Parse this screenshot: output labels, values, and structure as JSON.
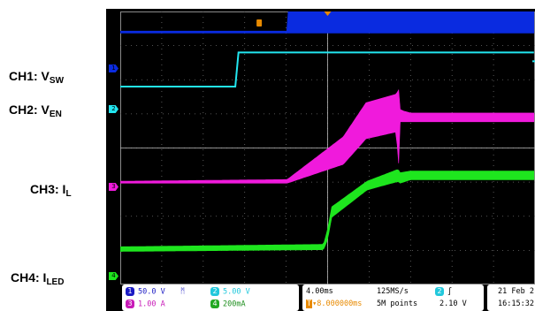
{
  "channels": [
    {
      "id": "1",
      "label_main": "CH1: V",
      "label_sub": "SW",
      "color": "#1b1bc4",
      "trace_color": "#0a2be0",
      "scale": "50.0 V"
    },
    {
      "id": "2",
      "label_main": "CH2: V",
      "label_sub": "EN",
      "color": "#22c8dc",
      "trace_color": "#22e6f0",
      "scale": "5.00 V"
    },
    {
      "id": "3",
      "label_main": "CH3: I",
      "label_sub": "L",
      "color": "#e81bd0",
      "trace_color": "#f01adc",
      "scale": "1.00 A"
    },
    {
      "id": "4",
      "label_main": "CH4: I",
      "label_sub": "LED",
      "color": "#22bf22",
      "trace_color": "#1ee61e",
      "scale": "200mA"
    }
  ],
  "status": {
    "timebase": "4.00ms",
    "trigger_pos": "▾8.000000ms",
    "sample_rate": "125MS/s",
    "record_length": "5M points",
    "trigger_channel": "2",
    "trigger_slope": "∫",
    "trigger_level": "2.10 V",
    "date": "21 Feb 2",
    "time": "16:15:32"
  },
  "chart_data": {
    "type": "line",
    "title": "",
    "xlabel": "",
    "ylabel": "",
    "x_divisions": 10,
    "y_divisions": 8,
    "time_per_div_ms": 4.0,
    "xlim_ms": [
      -20,
      20
    ],
    "series": [
      {
        "name": "CH1: VSW",
        "kind": "switching",
        "offset_div": 3.4,
        "x_ms": [
          -20,
          -3.9,
          -3.9,
          -0.8,
          0.1,
          20
        ],
        "low": [
          0.0,
          0.0,
          0.0,
          0.0,
          0.0,
          0.0
        ],
        "high": [
          0.0,
          0.0,
          0.55,
          1.2,
          1.35,
          1.35
        ]
      },
      {
        "name": "CH2: VEN",
        "kind": "line",
        "offset_div": 1.8,
        "x_ms": [
          -20,
          -8.8,
          -8.7,
          20
        ],
        "y_div": [
          0.0,
          0.0,
          1.0,
          1.0
        ]
      },
      {
        "name": "CH3: IL",
        "kind": "ripple",
        "offset_div": -1.0,
        "x_ms": [
          -20,
          -3.9,
          1.5,
          3.7,
          6.6,
          6.9,
          7.0,
          7.4,
          8.0,
          20
        ],
        "low": [
          0.0,
          0.0,
          0.55,
          1.3,
          1.5,
          0.4,
          1.8,
          1.8,
          1.8,
          1.8
        ],
        "high": [
          0.0,
          0.05,
          1.3,
          2.3,
          2.55,
          2.7,
          2.1,
          2.05,
          2.0,
          2.0
        ]
      },
      {
        "name": "CH4: ILED",
        "kind": "ripple",
        "offset_div": -3.0,
        "x_ms": [
          -20,
          -0.4,
          0.0,
          0.4,
          3.8,
          6.8,
          7.0,
          8.0,
          20
        ],
        "low": [
          0.0,
          0.05,
          0.35,
          1.0,
          1.8,
          2.05,
          2.0,
          2.1,
          2.1
        ],
        "high": [
          0.08,
          0.15,
          0.6,
          1.25,
          2.0,
          2.35,
          2.25,
          2.3,
          2.3
        ]
      }
    ],
    "trigger_x_ms": 0.0
  }
}
